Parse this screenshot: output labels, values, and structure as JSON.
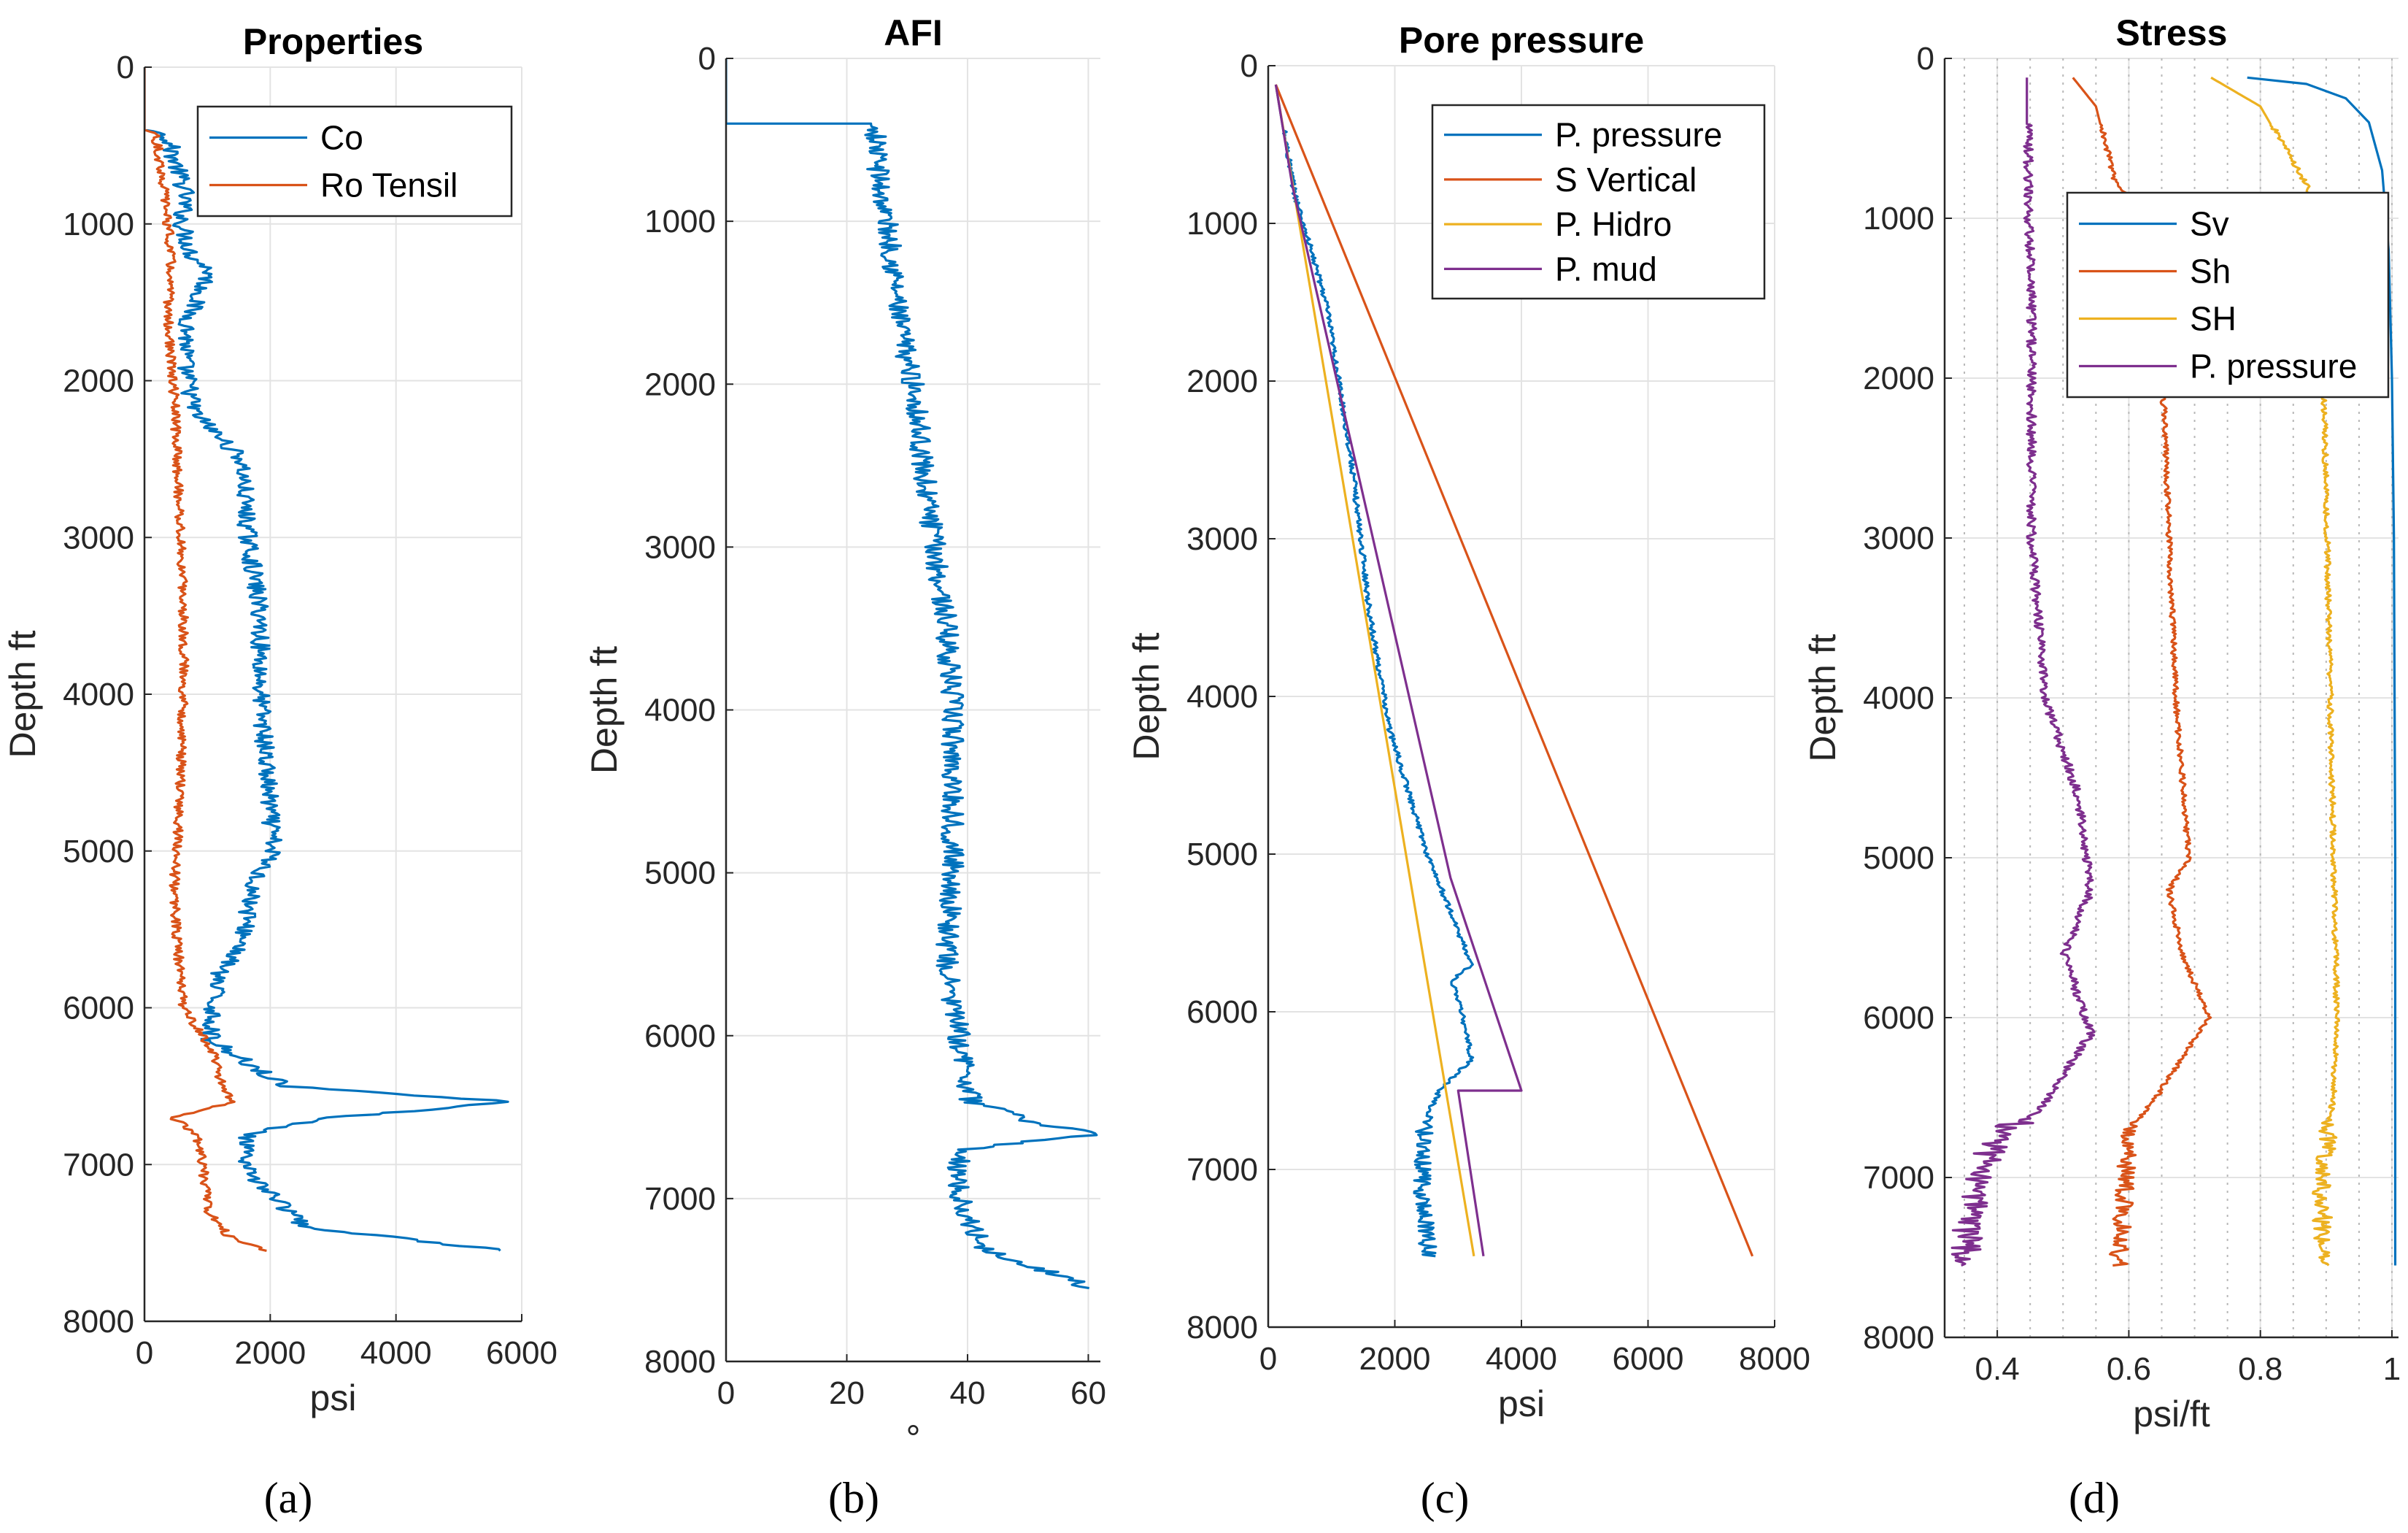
{
  "figure": {
    "captions": [
      "(a)",
      "(b)",
      "(c)",
      "(d)"
    ]
  },
  "chart_data": [
    {
      "type": "line",
      "title": "Properties",
      "xlabel": "psi",
      "ylabel": "Depth ft",
      "xlim": [
        0,
        6000
      ],
      "ylim": [
        0,
        8000
      ],
      "y_reversed": true,
      "xticks": [
        0,
        2000,
        4000,
        6000
      ],
      "yticks": [
        0,
        1000,
        2000,
        3000,
        4000,
        5000,
        6000,
        7000,
        8000
      ],
      "grid": true,
      "legend": "top-right",
      "series": [
        {
          "name": "Co",
          "color": "#0072BD",
          "x": [
            0,
            0,
            300,
            600,
            550,
            700,
            1000,
            650,
            600,
            700,
            750,
            1500,
            1600,
            1800,
            1800,
            1900,
            2000,
            1700,
            1500,
            1100,
            1000,
            2200,
            4000,
            5800,
            3000,
            1600,
            1500,
            2500,
            5700
          ],
          "y": [
            0,
            400,
            420,
            800,
            1000,
            1200,
            1300,
            1600,
            1900,
            2100,
            2200,
            2500,
            3000,
            3500,
            4000,
            4500,
            5000,
            5200,
            5600,
            5800,
            6200,
            6500,
            6550,
            6600,
            6700,
            6800,
            7000,
            7400,
            7550
          ]
        },
        {
          "name": "Ro Tensil",
          "color": "#D95319",
          "x": [
            0,
            0,
            150,
            300,
            350,
            400,
            350,
            400,
            450,
            500,
            550,
            600,
            600,
            550,
            500,
            450,
            500,
            600,
            1100,
            1200,
            1400,
            400,
            800,
            900,
            1000,
            1300,
            1900
          ],
          "y": [
            0,
            400,
            420,
            800,
            1000,
            1200,
            1600,
            1900,
            2100,
            2500,
            3000,
            3500,
            4000,
            4500,
            5000,
            5200,
            5600,
            6000,
            6300,
            6500,
            6600,
            6700,
            6800,
            7000,
            7300,
            7450,
            7550
          ]
        }
      ]
    },
    {
      "type": "line",
      "title": "AFI",
      "xlabel": "°",
      "ylabel": "Depth ft",
      "xlim": [
        0,
        62
      ],
      "ylim": [
        0,
        8000
      ],
      "y_reversed": true,
      "xticks": [
        0,
        20,
        40,
        60
      ],
      "yticks": [
        0,
        1000,
        2000,
        3000,
        4000,
        5000,
        6000,
        7000,
        8000
      ],
      "grid": true,
      "series": [
        {
          "name": "",
          "color": "#0072BD",
          "x": [
            0,
            0,
            24,
            25,
            27,
            28,
            31,
            32,
            34,
            36,
            37,
            37,
            37,
            36,
            36,
            38,
            40,
            52,
            62,
            50,
            38,
            38,
            42,
            60
          ],
          "y": [
            0,
            400,
            400,
            800,
            1200,
            1600,
            2100,
            2500,
            3000,
            3500,
            4000,
            4500,
            5000,
            5500,
            5600,
            6000,
            6400,
            6550,
            6600,
            6650,
            6700,
            7000,
            7300,
            7550
          ]
        }
      ]
    },
    {
      "type": "line",
      "title": "Pore pressure",
      "xlabel": "psi",
      "ylabel": "Depth ft",
      "xlim": [
        0,
        8000
      ],
      "ylim": [
        0,
        8000
      ],
      "y_reversed": true,
      "xticks": [
        0,
        2000,
        4000,
        6000,
        8000
      ],
      "yticks": [
        0,
        1000,
        2000,
        3000,
        4000,
        5000,
        6000,
        7000,
        8000
      ],
      "grid": true,
      "legend": "top-right",
      "series": [
        {
          "name": "P. pressure",
          "color": "#0072BD",
          "x": [
            120,
            400,
            900,
            1300,
            1600,
            1900,
            2200,
            2500,
            2900,
            3200,
            2900,
            3100,
            3200,
            2700,
            2500,
            2400,
            2400,
            2500
          ],
          "y": [
            120,
            800,
            1500,
            2500,
            3500,
            4200,
            4600,
            5000,
            5400,
            5700,
            5800,
            6100,
            6300,
            6500,
            6650,
            6800,
            7200,
            7550
          ]
        },
        {
          "name": "S Vertical",
          "color": "#D95319",
          "x": [
            120,
            7650
          ],
          "y": [
            120,
            7550
          ]
        },
        {
          "name": "P. Hidro",
          "color": "#EDB120",
          "x": [
            120,
            3250
          ],
          "y": [
            120,
            7550
          ]
        },
        {
          "name": "P. mud",
          "color": "#7E2F8E",
          "x": [
            120,
            380,
            2880,
            2880,
            4000,
            3000,
            3400
          ],
          "y": [
            120,
            760,
            5150,
            5150,
            6500,
            6500,
            7550
          ]
        }
      ]
    },
    {
      "type": "line",
      "title": "Stress",
      "xlabel": "psi/ft",
      "ylabel": "Depth ft",
      "xlim": [
        0.32,
        1.01
      ],
      "ylim": [
        0,
        8000
      ],
      "y_reversed": true,
      "xticks": [
        0.4,
        0.6,
        0.8,
        1
      ],
      "yticks": [
        0,
        1000,
        2000,
        3000,
        4000,
        5000,
        6000,
        7000,
        8000
      ],
      "grid": true,
      "legend": "top-right",
      "series": [
        {
          "name": "Sv",
          "color": "#0072BD",
          "x": [
            0.78,
            0.87,
            0.93,
            0.965,
            0.985,
            0.995,
            1.0,
            1.003,
            1.005,
            1.005
          ],
          "y": [
            120,
            160,
            250,
            400,
            700,
            1200,
            2000,
            3000,
            5000,
            7550
          ]
        },
        {
          "name": "Sh",
          "color": "#D95319",
          "x": [
            0.515,
            0.55,
            0.58,
            0.64,
            0.65,
            0.66,
            0.67,
            0.69,
            0.66,
            0.68,
            0.72,
            0.64,
            0.6,
            0.59,
            0.58
          ],
          "y": [
            120,
            300,
            800,
            1000,
            2000,
            3000,
            4000,
            5000,
            5200,
            5600,
            6000,
            6500,
            6700,
            7000,
            7550
          ]
        },
        {
          "name": "SH",
          "color": "#EDB120",
          "x": [
            0.725,
            0.8,
            0.87,
            0.88,
            0.895,
            0.9,
            0.905,
            0.91,
            0.915,
            0.91,
            0.9,
            0.89,
            0.89
          ],
          "y": [
            120,
            300,
            800,
            1000,
            2000,
            3000,
            4000,
            5000,
            6000,
            6500,
            6700,
            7000,
            7550
          ]
        },
        {
          "name": "P. pressure",
          "color": "#7E2F8E",
          "x": [
            0.445,
            0.445,
            0.45,
            0.45,
            0.45,
            0.46,
            0.47,
            0.52,
            0.54,
            0.5,
            0.54,
            0.46,
            0.4,
            0.36,
            0.34
          ],
          "y": [
            120,
            1000,
            1400,
            2000,
            3000,
            3500,
            4000,
            4600,
            5200,
            5600,
            6100,
            6600,
            6700,
            7000,
            7550
          ]
        }
      ]
    }
  ]
}
